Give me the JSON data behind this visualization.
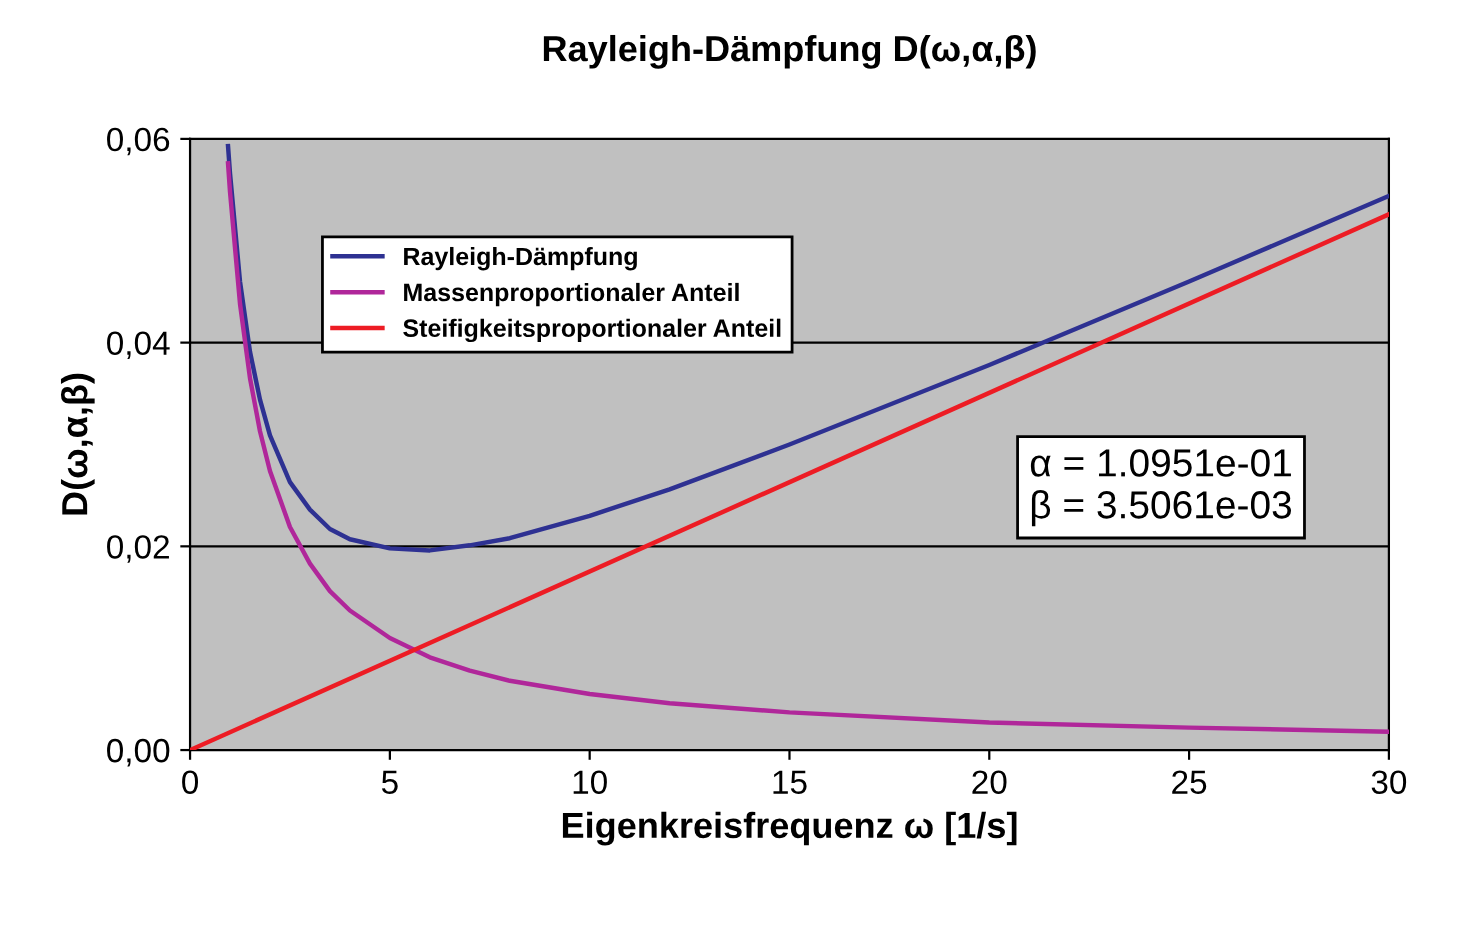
{
  "chart_data": {
    "type": "line",
    "title": "Rayleigh-Dämpfung D(ω,α,β)",
    "xlabel": "Eigenkreisfrequenz ω [1/s]",
    "ylabel": "D(ω,α,β)",
    "x": [
      0.95,
      1,
      1.25,
      1.5,
      1.75,
      2,
      2.5,
      3,
      3.5,
      4,
      5,
      6,
      7,
      8,
      10,
      12,
      15,
      20,
      25,
      30
    ],
    "series": [
      {
        "name": "Rayleigh-Dämpfung",
        "color": "#2e3192",
        "values": [
          0.0593,
          0.0566,
          0.046,
          0.0391,
          0.0344,
          0.0309,
          0.0263,
          0.0236,
          0.0217,
          0.0207,
          0.0198,
          0.0196,
          0.0201,
          0.0208,
          0.023,
          0.0256,
          0.03,
          0.0378,
          0.046,
          0.0544
        ]
      },
      {
        "name": "Massenproportionaler Anteil",
        "color": "#b0279a",
        "values": [
          0.0576,
          0.0548,
          0.0438,
          0.0365,
          0.0313,
          0.0274,
          0.0219,
          0.0183,
          0.0156,
          0.0137,
          0.011,
          0.0091,
          0.0078,
          0.0068,
          0.0055,
          0.0046,
          0.0037,
          0.0027,
          0.0022,
          0.0018
        ]
      },
      {
        "name": "Steifigkeitsproportionaler Anteil",
        "color": "#ed1c24",
        "x": [
          0,
          30
        ],
        "values": [
          0,
          0.0526
        ]
      }
    ],
    "xlim": [
      0,
      30
    ],
    "xticks": [
      0,
      5,
      10,
      15,
      20,
      25,
      30
    ],
    "ylim": [
      0,
      0.06
    ],
    "yticks": [
      {
        "value": 0,
        "label": "0,00"
      },
      {
        "value": 0.02,
        "label": "0,02"
      },
      {
        "value": 0.04,
        "label": "0,04"
      },
      {
        "value": 0.06,
        "label": "0,06"
      }
    ],
    "grid": "y",
    "legend": "top left",
    "marker": "none",
    "line_style": "solid",
    "annotations": [
      "α = 1.0951e-01\nβ = 3.5061e-03"
    ]
  }
}
